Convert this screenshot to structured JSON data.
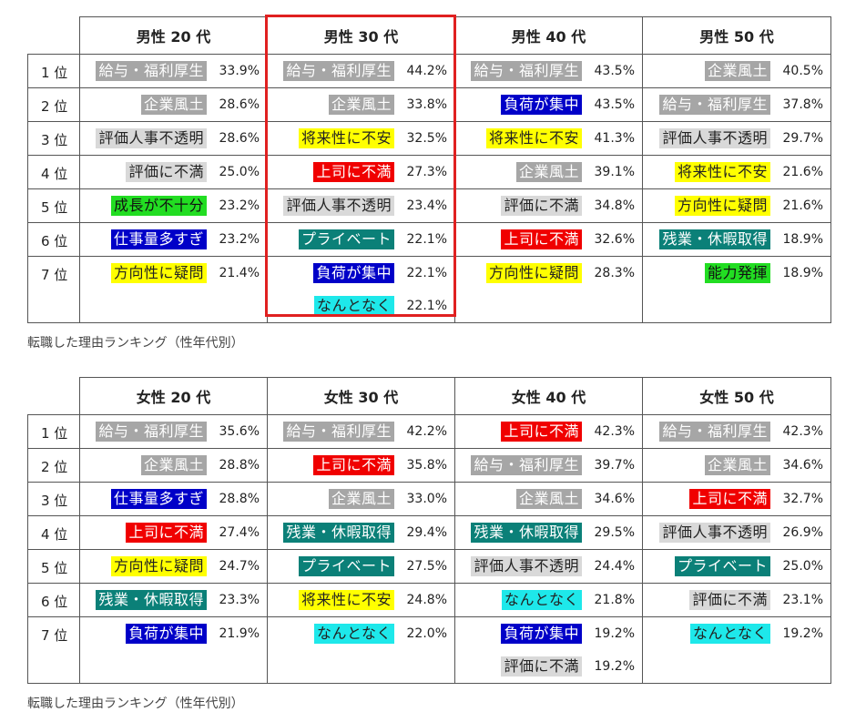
{
  "tables": [
    {
      "headers": [
        "男性 20 代",
        "男性 30 代",
        "男性 40 代",
        "男性 50 代"
      ],
      "ranks": [
        "1 位",
        "2 位",
        "3 位",
        "4 位",
        "5 位",
        "6 位",
        "7 位"
      ],
      "columns": [
        [
          [
            {
              "label": "給与・福利厚生",
              "pct": "33.9%",
              "color": "grey"
            }
          ],
          [
            {
              "label": "企業風土",
              "pct": "28.6%",
              "color": "grey"
            }
          ],
          [
            {
              "label": "評価人事不透明",
              "pct": "28.6%",
              "color": "lgrey"
            }
          ],
          [
            {
              "label": "評価に不満",
              "pct": "25.0%",
              "color": "lgrey"
            }
          ],
          [
            {
              "label": "成長が不十分",
              "pct": "23.2%",
              "color": "green"
            }
          ],
          [
            {
              "label": "仕事量多すぎ",
              "pct": "23.2%",
              "color": "blue"
            }
          ],
          [
            {
              "label": "方向性に疑問",
              "pct": "21.4%",
              "color": "yellow"
            }
          ]
        ],
        [
          [
            {
              "label": "給与・福利厚生",
              "pct": "44.2%",
              "color": "grey"
            }
          ],
          [
            {
              "label": "企業風土",
              "pct": "33.8%",
              "color": "grey"
            }
          ],
          [
            {
              "label": "将来性に不安",
              "pct": "32.5%",
              "color": "yellow"
            }
          ],
          [
            {
              "label": "上司に不満",
              "pct": "27.3%",
              "color": "red"
            }
          ],
          [
            {
              "label": "評価人事不透明",
              "pct": "23.4%",
              "color": "lgrey"
            }
          ],
          [
            {
              "label": "プライベート",
              "pct": "22.1%",
              "color": "teal"
            }
          ],
          [
            {
              "label": "負荷が集中",
              "pct": "22.1%",
              "color": "blue"
            },
            {
              "label": "なんとなく",
              "pct": "22.1%",
              "color": "cyan"
            }
          ]
        ],
        [
          [
            {
              "label": "給与・福利厚生",
              "pct": "43.5%",
              "color": "grey"
            }
          ],
          [
            {
              "label": "負荷が集中",
              "pct": "43.5%",
              "color": "blue"
            }
          ],
          [
            {
              "label": "将来性に不安",
              "pct": "41.3%",
              "color": "yellow"
            }
          ],
          [
            {
              "label": "企業風土",
              "pct": "39.1%",
              "color": "grey"
            }
          ],
          [
            {
              "label": "評価に不満",
              "pct": "34.8%",
              "color": "lgrey"
            }
          ],
          [
            {
              "label": "上司に不満",
              "pct": "32.6%",
              "color": "red"
            }
          ],
          [
            {
              "label": "方向性に疑問",
              "pct": "28.3%",
              "color": "yellow"
            }
          ]
        ],
        [
          [
            {
              "label": "企業風土",
              "pct": "40.5%",
              "color": "grey"
            }
          ],
          [
            {
              "label": "給与・福利厚生",
              "pct": "37.8%",
              "color": "grey"
            }
          ],
          [
            {
              "label": "評価人事不透明",
              "pct": "29.7%",
              "color": "lgrey"
            }
          ],
          [
            {
              "label": "将来性に不安",
              "pct": "21.6%",
              "color": "yellow"
            }
          ],
          [
            {
              "label": "方向性に疑問",
              "pct": "21.6%",
              "color": "yellow"
            }
          ],
          [
            {
              "label": "残業・休暇取得",
              "pct": "18.9%",
              "color": "teal"
            }
          ],
          [
            {
              "label": "能力発揮",
              "pct": "18.9%",
              "color": "green"
            }
          ]
        ]
      ],
      "caption": "転職した理由ランキング（性年代別）"
    },
    {
      "headers": [
        "女性 20 代",
        "女性 30 代",
        "女性 40 代",
        "女性 50 代"
      ],
      "ranks": [
        "1 位",
        "2 位",
        "3 位",
        "4 位",
        "5 位",
        "6 位",
        "7 位"
      ],
      "columns": [
        [
          [
            {
              "label": "給与・福利厚生",
              "pct": "35.6%",
              "color": "grey"
            }
          ],
          [
            {
              "label": "企業風土",
              "pct": "28.8%",
              "color": "grey"
            }
          ],
          [
            {
              "label": "仕事量多すぎ",
              "pct": "28.8%",
              "color": "blue"
            }
          ],
          [
            {
              "label": "上司に不満",
              "pct": "27.4%",
              "color": "red"
            }
          ],
          [
            {
              "label": "方向性に疑問",
              "pct": "24.7%",
              "color": "yellow"
            }
          ],
          [
            {
              "label": "残業・休暇取得",
              "pct": "23.3%",
              "color": "teal"
            }
          ],
          [
            {
              "label": "負荷が集中",
              "pct": "21.9%",
              "color": "blue"
            }
          ]
        ],
        [
          [
            {
              "label": "給与・福利厚生",
              "pct": "42.2%",
              "color": "grey"
            }
          ],
          [
            {
              "label": "上司に不満",
              "pct": "35.8%",
              "color": "red"
            }
          ],
          [
            {
              "label": "企業風土",
              "pct": "33.0%",
              "color": "grey"
            }
          ],
          [
            {
              "label": "残業・休暇取得",
              "pct": "29.4%",
              "color": "teal"
            }
          ],
          [
            {
              "label": "プライベート",
              "pct": "27.5%",
              "color": "teal"
            }
          ],
          [
            {
              "label": "将来性に不安",
              "pct": "24.8%",
              "color": "yellow"
            }
          ],
          [
            {
              "label": "なんとなく",
              "pct": "22.0%",
              "color": "cyan"
            }
          ]
        ],
        [
          [
            {
              "label": "上司に不満",
              "pct": "42.3%",
              "color": "red"
            }
          ],
          [
            {
              "label": "給与・福利厚生",
              "pct": "39.7%",
              "color": "grey"
            }
          ],
          [
            {
              "label": "企業風土",
              "pct": "34.6%",
              "color": "grey"
            }
          ],
          [
            {
              "label": "残業・休暇取得",
              "pct": "29.5%",
              "color": "teal"
            }
          ],
          [
            {
              "label": "評価人事不透明",
              "pct": "24.4%",
              "color": "lgrey"
            }
          ],
          [
            {
              "label": "なんとなく",
              "pct": "21.8%",
              "color": "cyan"
            }
          ],
          [
            {
              "label": "負荷が集中",
              "pct": "19.2%",
              "color": "blue"
            },
            {
              "label": "評価に不満",
              "pct": "19.2%",
              "color": "lgrey"
            }
          ]
        ],
        [
          [
            {
              "label": "給与・福利厚生",
              "pct": "42.3%",
              "color": "grey"
            }
          ],
          [
            {
              "label": "企業風土",
              "pct": "34.6%",
              "color": "grey"
            }
          ],
          [
            {
              "label": "上司に不満",
              "pct": "32.7%",
              "color": "red"
            }
          ],
          [
            {
              "label": "評価人事不透明",
              "pct": "26.9%",
              "color": "lgrey"
            }
          ],
          [
            {
              "label": "プライベート",
              "pct": "25.0%",
              "color": "teal"
            }
          ],
          [
            {
              "label": "評価に不満",
              "pct": "23.1%",
              "color": "lgrey"
            }
          ],
          [
            {
              "label": "なんとなく",
              "pct": "19.2%",
              "color": "cyan"
            }
          ]
        ]
      ],
      "caption": "転職した理由ランキング（性年代別）"
    }
  ]
}
